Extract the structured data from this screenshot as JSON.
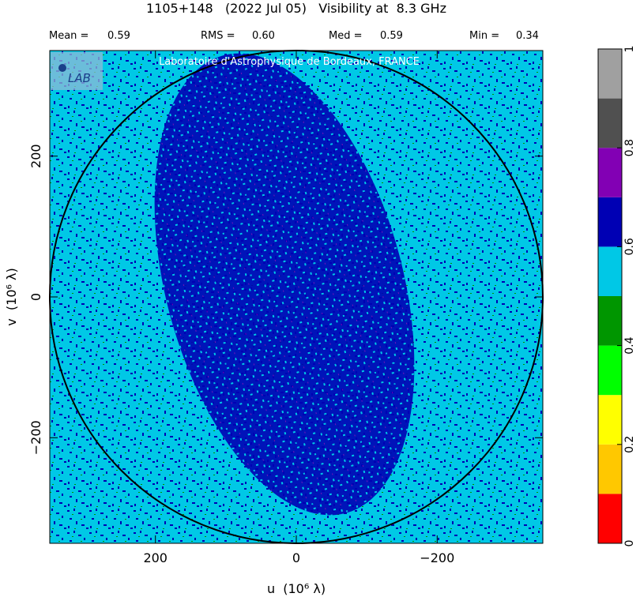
{
  "header": {
    "title": "1105+148   (2022 Jul 05)   Visibility at  8.3 GHz",
    "stats": [
      {
        "label": "Mean =",
        "value": "0.59"
      },
      {
        "label": "RMS =",
        "value": "0.60"
      },
      {
        "label": "Med =",
        "value": "0.59"
      },
      {
        "label": "Min =",
        "value": "0.34"
      }
    ]
  },
  "watermark": {
    "text": "Laboratoire d'Astrophysique de Bordeaux, FRANCE",
    "logo_text": "LAB"
  },
  "colors": {
    "accent_background": "#00c8e6",
    "dense_blue": "#0000b4",
    "circle": "#000000"
  },
  "chart_data": {
    "type": "heatmap",
    "xlabel": "u  (10⁶ λ)",
    "ylabel": "v  (10⁶ λ)",
    "x_range": [
      350,
      -350
    ],
    "y_range": [
      -350,
      350
    ],
    "x_ticks": [
      {
        "value": 200,
        "label": "200"
      },
      {
        "value": 0,
        "label": "0"
      },
      {
        "value": -200,
        "label": "−200"
      }
    ],
    "y_ticks": [
      {
        "value": 200,
        "label": "200"
      },
      {
        "value": 0,
        "label": "0"
      },
      {
        "value": -200,
        "label": "−200"
      }
    ],
    "circle_radius": 350,
    "colorbar": {
      "range": [
        0,
        1
      ],
      "ticks": [
        {
          "value": 0,
          "label": "0"
        },
        {
          "value": 0.2,
          "label": "0.2"
        },
        {
          "value": 0.4,
          "label": "0.4"
        },
        {
          "value": 0.6,
          "label": "0.6"
        },
        {
          "value": 0.8,
          "label": "0.8"
        },
        {
          "value": 1,
          "label": "1"
        }
      ],
      "bins": [
        {
          "from": 0.0,
          "to": 0.1,
          "color": "#ff0000"
        },
        {
          "from": 0.1,
          "to": 0.2,
          "color": "#ffc800"
        },
        {
          "from": 0.2,
          "to": 0.3,
          "color": "#ffff00"
        },
        {
          "from": 0.3,
          "to": 0.4,
          "color": "#00ff00"
        },
        {
          "from": 0.4,
          "to": 0.5,
          "color": "#009600"
        },
        {
          "from": 0.5,
          "to": 0.6,
          "color": "#00c8e6"
        },
        {
          "from": 0.6,
          "to": 0.7,
          "color": "#0000b4"
        },
        {
          "from": 0.7,
          "to": 0.8,
          "color": "#8200b4"
        },
        {
          "from": 0.8,
          "to": 0.9,
          "color": "#505050"
        },
        {
          "from": 0.9,
          "to": 1.0,
          "color": "#a0a0a0"
        }
      ]
    }
  }
}
